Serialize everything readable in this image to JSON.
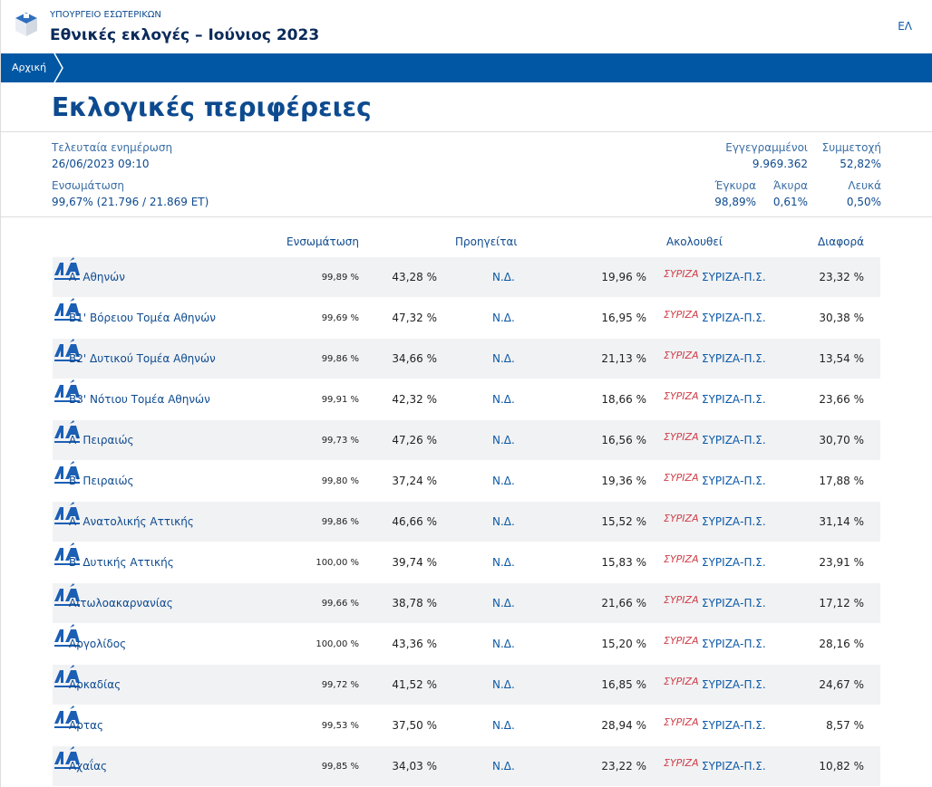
{
  "header": {
    "ministry": "ΥΠΟΥΡΓΕΙΟ ΕΣΩΤΕΡΙΚΩΝ",
    "title": "Εθνικές εκλογές – Ιούνιος 2023",
    "lang": "ΕΛ"
  },
  "breadcrumb": {
    "home": "Αρχική"
  },
  "page_title": "Εκλογικές περιφέρειες",
  "info": {
    "last_update_label": "Τελευταία ενημέρωση",
    "last_update": "26/06/2023 09:10",
    "integration_label": "Ενσωμάτωση",
    "integration": "99,67% (21.796 / 21.869 ΕΤ)",
    "registered_label": "Εγγεγραμμένοι",
    "registered": "9.969.362",
    "turnout_label": "Συμμετοχή",
    "turnout": "52,82%",
    "valid_label": "Έγκυρα",
    "valid": "98,89%",
    "invalid_label": "Άκυρα",
    "invalid": "0,61%",
    "blank_label": "Λευκά",
    "blank": "0,50%"
  },
  "table": {
    "headers": {
      "integration": "Ενσωμάτωση",
      "leader": "Προηγείται",
      "follower": "Ακολουθεί",
      "diff": "Διαφορά"
    },
    "leader_party": "Ν.Δ.",
    "follower_party": "ΣΥΡΙΖΑ-Π.Σ.",
    "follower_logo_text": "ΣΥΡΙΖΑ",
    "leader_logo_text": "ΝΔ",
    "rows": [
      {
        "name": "Α' Αθηνών",
        "ens": "99,89 %",
        "lp": "43,28 %",
        "fp": "19,96 %",
        "diff": "23,32 %"
      },
      {
        "name": "Β1' Βόρειου Τομέα Αθηνών",
        "ens": "99,69 %",
        "lp": "47,32 %",
        "fp": "16,95 %",
        "diff": "30,38 %"
      },
      {
        "name": "Β2' Δυτικού Τομέα Αθηνών",
        "ens": "99,86 %",
        "lp": "34,66 %",
        "fp": "21,13 %",
        "diff": "13,54 %"
      },
      {
        "name": "Β3' Νότιου Τομέα Αθηνών",
        "ens": "99,91 %",
        "lp": "42,32 %",
        "fp": "18,66 %",
        "diff": "23,66 %"
      },
      {
        "name": "Α' Πειραιώς",
        "ens": "99,73 %",
        "lp": "47,26 %",
        "fp": "16,56 %",
        "diff": "30,70 %"
      },
      {
        "name": "Β' Πειραιώς",
        "ens": "99,80 %",
        "lp": "37,24 %",
        "fp": "19,36 %",
        "diff": "17,88 %"
      },
      {
        "name": "Α' Ανατολικής Αττικής",
        "ens": "99,86 %",
        "lp": "46,66 %",
        "fp": "15,52 %",
        "diff": "31,14 %"
      },
      {
        "name": "Β' Δυτικής Αττικής",
        "ens": "100,00 %",
        "lp": "39,74 %",
        "fp": "15,83 %",
        "diff": "23,91 %"
      },
      {
        "name": "Αιτωλοακαρνανίας",
        "ens": "99,66 %",
        "lp": "38,78 %",
        "fp": "21,66 %",
        "diff": "17,12 %"
      },
      {
        "name": "Αργολίδος",
        "ens": "100,00 %",
        "lp": "43,36 %",
        "fp": "15,20 %",
        "diff": "28,16 %"
      },
      {
        "name": "Αρκαδίας",
        "ens": "99,72 %",
        "lp": "41,52 %",
        "fp": "16,85 %",
        "diff": "24,67 %"
      },
      {
        "name": "Άρτας",
        "ens": "99,53 %",
        "lp": "37,50 %",
        "fp": "28,94 %",
        "diff": "8,57 %"
      },
      {
        "name": "Αχαΐας",
        "ens": "99,85 %",
        "lp": "34,03 %",
        "fp": "23,22 %",
        "diff": "10,82 %"
      }
    ]
  }
}
